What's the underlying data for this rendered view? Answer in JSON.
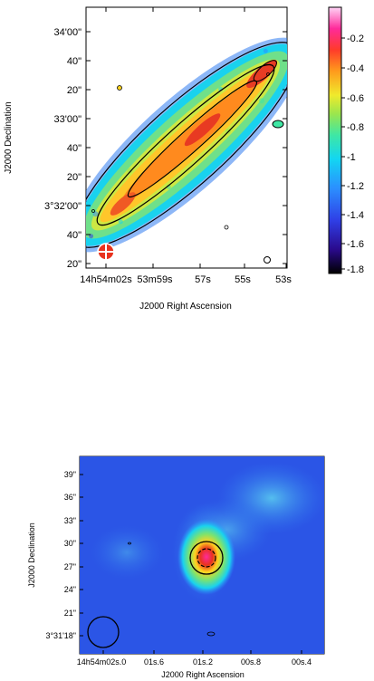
{
  "top_panel": {
    "xlabel": "J2000 Right Ascension",
    "ylabel": "J2000 Declination",
    "x_ticks": [
      "14h54m02s",
      "53m59s",
      "57s",
      "55s",
      "53s"
    ],
    "y_ticks": [
      "34'00\"",
      "40\"",
      "20\"",
      "33'00\"",
      "40\"",
      "20\"",
      "3°32'00\"",
      "40\"",
      "20\""
    ],
    "colorbar_ticks": [
      "-0.2",
      "-0.4",
      "-0.6",
      "-0.8",
      "-1",
      "-1.2",
      "-1.4",
      "-1.6",
      "-1.8"
    ],
    "colorbar_range": [
      -1.85,
      -0.1
    ],
    "colormap": [
      "#000000",
      "#2a0a8c",
      "#2f3fe6",
      "#2b8fff",
      "#12d6f2",
      "#3fe7a4",
      "#9be64d",
      "#f0ea2c",
      "#ff9a1c",
      "#ff3b2a",
      "#ff2a9a",
      "#ffd4f6"
    ]
  },
  "bottom_panel": {
    "xlabel": "J2000 Right Ascension",
    "ylabel": "J2000 Declination",
    "x_ticks": [
      "14h54m02s.0",
      "01s.6",
      "01s.2",
      "00s.8",
      "00s.4"
    ],
    "y_ticks": [
      "39\"",
      "36\"",
      "33\"",
      "30\"",
      "27\"",
      "24\"",
      "21\"",
      "3°31'18\""
    ]
  }
}
